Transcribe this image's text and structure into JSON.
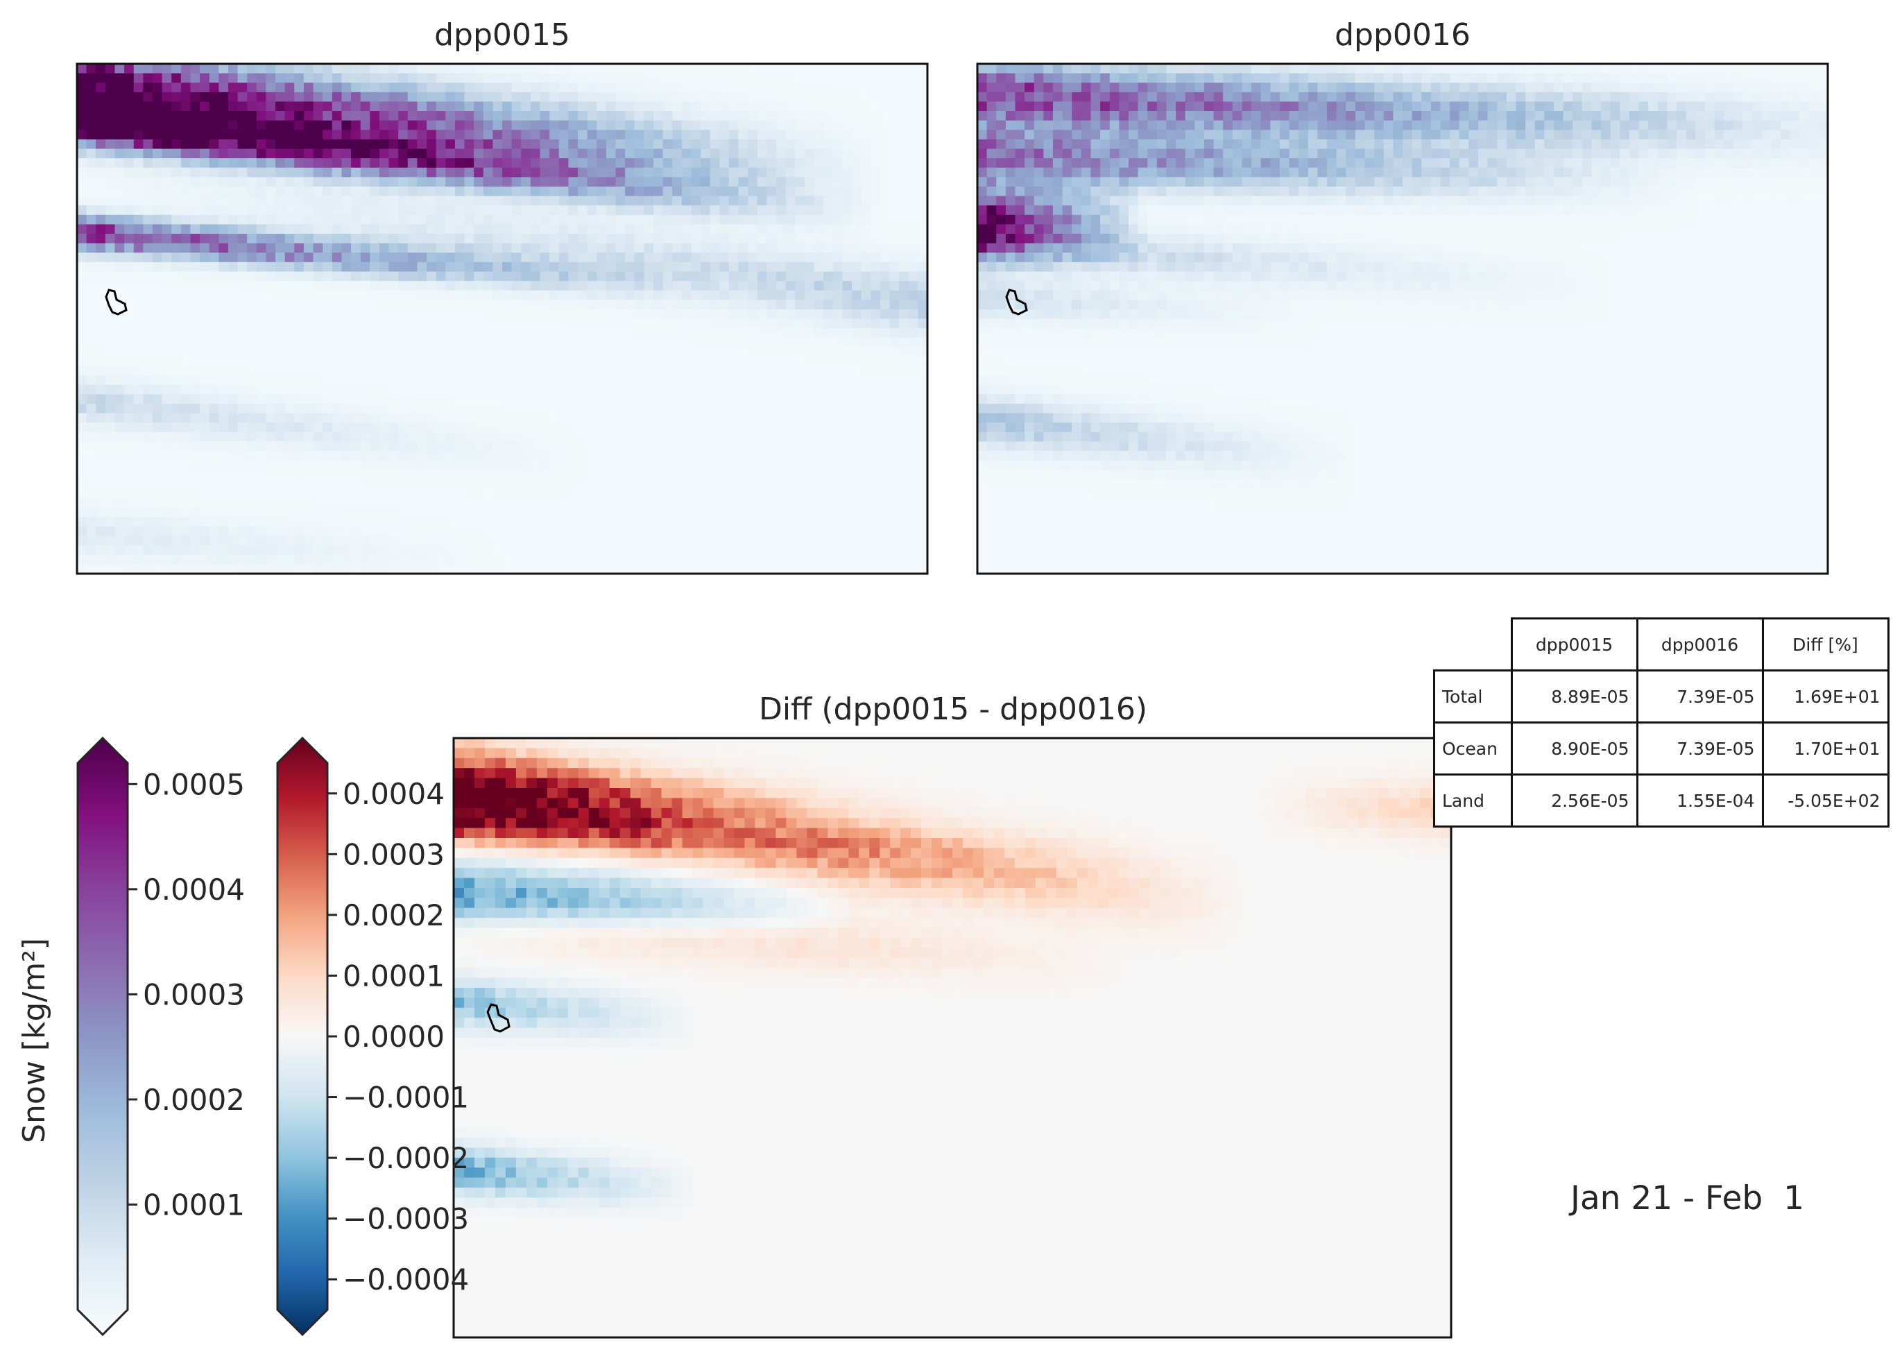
{
  "chart_data": [
    {
      "type": "heatmap",
      "title": "dpp0015",
      "colormap": "BuPu",
      "value_range": [
        0,
        0.0005
      ],
      "pattern": "high snow concentrated in upper-left, diagonal streaks descending to the right; mostly near zero elsewhere"
    },
    {
      "type": "heatmap",
      "title": "dpp0016",
      "colormap": "BuPu",
      "value_range": [
        0,
        0.0005
      ],
      "pattern": "moderate snow in upper-left band and streaks; weaker than dpp0015"
    },
    {
      "type": "heatmap",
      "title": "Diff (dpp0015 - dpp0016)",
      "colormap": "RdBu_r",
      "value_range": [
        -0.00045,
        0.00045
      ],
      "pattern": "strong positive diagonal band from upper-left toward center-top, negative streaks on the left edge"
    }
  ],
  "colorbars": {
    "snow": {
      "label": "Snow [kg/m²]",
      "ticks": [
        "0.0001",
        "0.0002",
        "0.0003",
        "0.0004",
        "0.0005"
      ],
      "min": 0,
      "max": 0.00052,
      "colors": [
        "#f7fcfd",
        "#e0ecf4",
        "#bfd3e6",
        "#9ebcda",
        "#8c96c6",
        "#8c6bb1",
        "#88419d",
        "#810f7c",
        "#4d004b"
      ]
    },
    "diff": {
      "ticks": [
        "0.0004",
        "0.0003",
        "0.0002",
        "0.0001",
        "0.0000",
        "−0.0001",
        "−0.0002",
        "−0.0003",
        "−0.0004"
      ],
      "min": -0.00045,
      "max": 0.00045,
      "colors": [
        "#053061",
        "#2166ac",
        "#4393c3",
        "#92c5de",
        "#d1e5f0",
        "#f7f7f7",
        "#fddbc7",
        "#f4a582",
        "#d6604d",
        "#b2182b",
        "#67001f"
      ]
    }
  },
  "table": {
    "headers": [
      "dpp0015",
      "dpp0016",
      "Diff [%]"
    ],
    "rows": [
      {
        "label": "Total",
        "values": [
          "8.89E-05",
          "7.39E-05",
          "1.69E+01"
        ]
      },
      {
        "label": "Ocean",
        "values": [
          "8.90E-05",
          "7.39E-05",
          "1.70E+01"
        ]
      },
      {
        "label": "Land",
        "values": [
          "2.56E-05",
          "1.55E-04",
          "-5.05E+02"
        ]
      }
    ]
  },
  "period_label": "Jan 21 - Feb  1"
}
